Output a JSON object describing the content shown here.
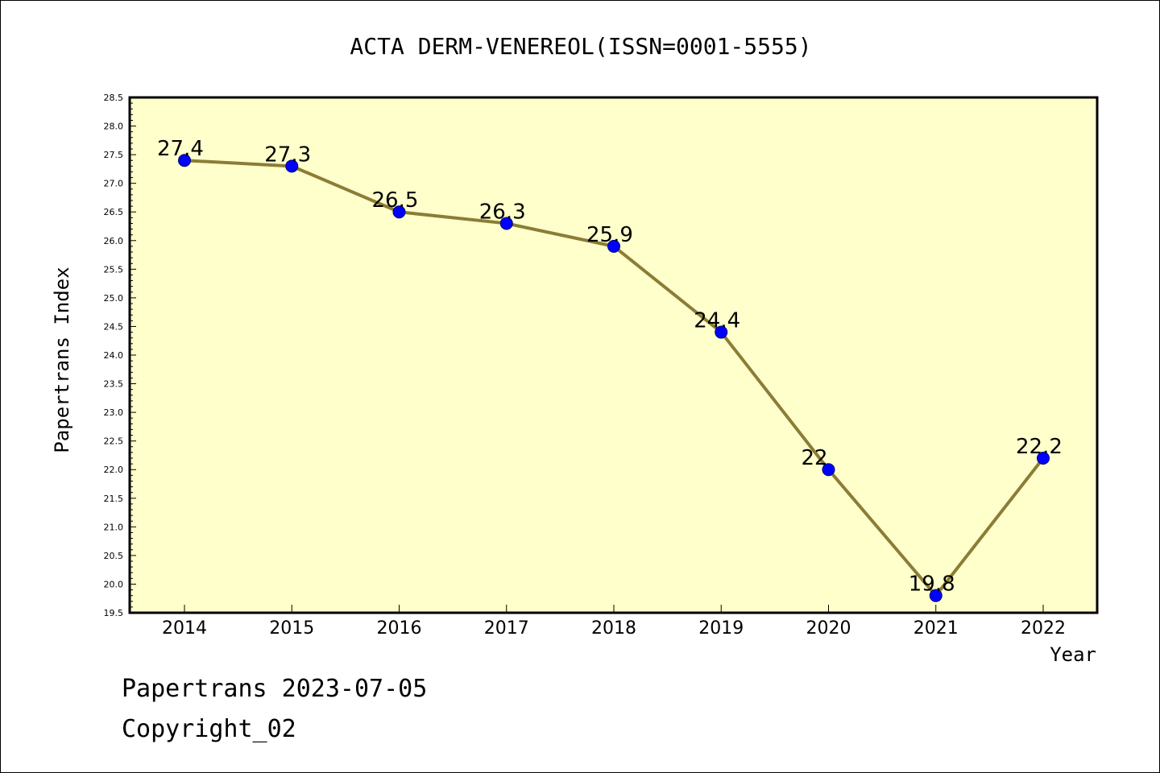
{
  "chart_data": {
    "type": "line",
    "title": "ACTA DERM-VENEREOL(ISSN=0001-5555)",
    "xlabel": "Year",
    "ylabel": "Papertrans Index",
    "categories": [
      "2014",
      "2015",
      "2016",
      "2017",
      "2018",
      "2019",
      "2020",
      "2021",
      "2022"
    ],
    "values": [
      27.4,
      27.3,
      26.5,
      26.3,
      25.9,
      24.4,
      22,
      19.8,
      22.2
    ],
    "data_labels": [
      "27.4",
      "27.3",
      "26.5",
      "26.3",
      "25.9",
      "24.4",
      "22",
      "19.8",
      "22.2"
    ],
    "ylim": [
      19.5,
      28.5
    ],
    "yticks": [
      "19.5",
      "20.0",
      "20.5",
      "21.0",
      "21.5",
      "22.0",
      "22.5",
      "23.0",
      "23.5",
      "24.0",
      "24.5",
      "25.0",
      "25.5",
      "26.0",
      "26.5",
      "27.0",
      "27.5",
      "28.0",
      "28.5"
    ],
    "grid": false,
    "colors": {
      "plot_background": "#ffffcc",
      "line": "#8b7d35",
      "marker": "#0000ff"
    }
  },
  "footer": {
    "line1": "Papertrans 2023-07-05",
    "line2": "Copyright_02"
  }
}
